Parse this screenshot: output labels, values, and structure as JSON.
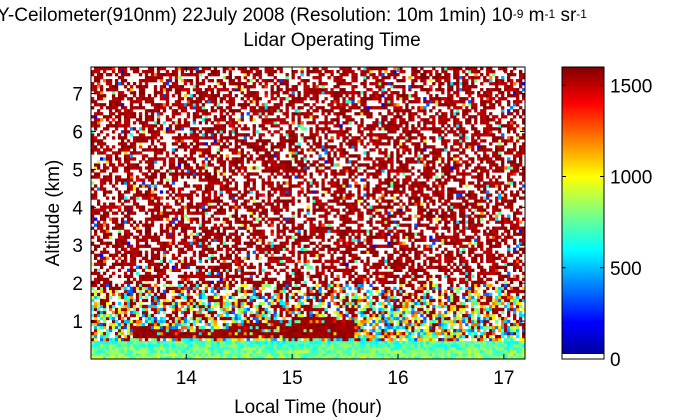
{
  "title": {
    "line1_prefix": "Y-Ceilometer(910nm) 22July 2008 (Resolution: 10m 1min) 10",
    "line1_exp1": "-9",
    "line1_mid": " m",
    "line1_exp2": "-1",
    "line1_mid2": " sr",
    "line1_exp3": "-1",
    "line2": "Lidar Operating Time"
  },
  "chart_data": {
    "type": "heatmap",
    "xlabel": "Local Time (hour)",
    "ylabel": "Altitude (km)",
    "xlim": [
      13.1,
      17.2
    ],
    "ylim": [
      0,
      7.7
    ],
    "x_ticks": [
      14,
      15,
      16,
      17
    ],
    "y_ticks": [
      1,
      2,
      3,
      4,
      5,
      6,
      7
    ],
    "x_tick_labels": [
      "14",
      "15",
      "16",
      "17"
    ],
    "y_tick_labels": [
      "1",
      "2",
      "3",
      "4",
      "5",
      "6",
      "7"
    ],
    "colorbar": {
      "range": [
        0,
        1600
      ],
      "ticks": [
        0,
        500,
        1000,
        1500
      ],
      "tick_labels": [
        "0",
        "500",
        "1000",
        "1500"
      ],
      "colormap": "jet"
    },
    "features": {
      "noise_saturated_above_km": 2.0,
      "surface_layer_km": [
        0,
        0.5
      ],
      "aerosol_layer": {
        "x_range": [
          13.5,
          15.6
        ],
        "altitude_km": [
          0.55,
          1.0
        ]
      }
    }
  }
}
